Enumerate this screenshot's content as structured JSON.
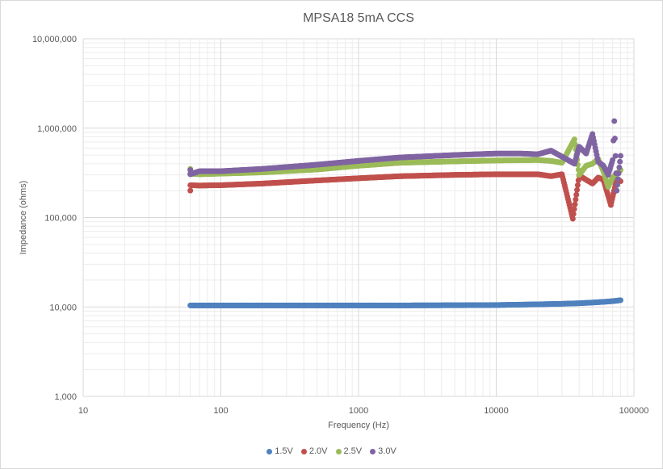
{
  "chart_data": {
    "type": "scatter",
    "title": "MPSA18 5mA CCS",
    "xlabel": "Frequency (Hz)",
    "ylabel": "Impedance (ohms)",
    "x_scale": "log",
    "y_scale": "log",
    "xlim": [
      10,
      100000
    ],
    "ylim": [
      1000,
      10000000
    ],
    "x_tick_labels": [
      "10",
      "100",
      "1000",
      "10000",
      "100000"
    ],
    "y_tick_labels": [
      "1,000",
      "10,000",
      "100,000",
      "1,000,000",
      "10,000,000"
    ],
    "grid": true,
    "legend_position": "bottom",
    "series": [
      {
        "name": "1.5V",
        "color": "#4f81bd",
        "points": [
          [
            60,
            10400
          ],
          [
            100,
            10400
          ],
          [
            200,
            10400
          ],
          [
            500,
            10400
          ],
          [
            1000,
            10400
          ],
          [
            2000,
            10400
          ],
          [
            5000,
            10450
          ],
          [
            10000,
            10500
          ],
          [
            20000,
            10700
          ],
          [
            30000,
            10850
          ],
          [
            40000,
            11000
          ],
          [
            50000,
            11200
          ],
          [
            60000,
            11400
          ],
          [
            70000,
            11600
          ],
          [
            80000,
            11900
          ]
        ]
      },
      {
        "name": "2.0V",
        "color": "#c0504d",
        "points": [
          [
            60,
            200000
          ],
          [
            60,
            230000
          ],
          [
            70,
            228000
          ],
          [
            100,
            230000
          ],
          [
            200,
            240000
          ],
          [
            500,
            260000
          ],
          [
            1000,
            275000
          ],
          [
            2000,
            290000
          ],
          [
            5000,
            300000
          ],
          [
            10000,
            305000
          ],
          [
            20000,
            305000
          ],
          [
            25000,
            290000
          ],
          [
            30000,
            305000
          ],
          [
            36000,
            97000
          ],
          [
            40000,
            295000
          ],
          [
            50000,
            240000
          ],
          [
            55000,
            280000
          ],
          [
            60000,
            265000
          ],
          [
            68000,
            138000
          ],
          [
            75000,
            270000
          ],
          [
            80000,
            255000
          ]
        ]
      },
      {
        "name": "2.5V",
        "color": "#9bbb59",
        "points": [
          [
            60,
            350000
          ],
          [
            60,
            310000
          ],
          [
            70,
            305000
          ],
          [
            100,
            310000
          ],
          [
            200,
            320000
          ],
          [
            500,
            345000
          ],
          [
            1000,
            380000
          ],
          [
            2000,
            410000
          ],
          [
            5000,
            425000
          ],
          [
            10000,
            435000
          ],
          [
            20000,
            440000
          ],
          [
            25000,
            430000
          ],
          [
            30000,
            410000
          ],
          [
            37000,
            750000
          ],
          [
            40000,
            300000
          ],
          [
            45000,
            380000
          ],
          [
            50000,
            400000
          ],
          [
            55000,
            450000
          ],
          [
            60000,
            330000
          ],
          [
            65000,
            220000
          ],
          [
            70000,
            280000
          ],
          [
            80000,
            340000
          ]
        ]
      },
      {
        "name": "3.0V",
        "color": "#8064a2",
        "points": [
          [
            60,
            340000
          ],
          [
            60,
            305000
          ],
          [
            70,
            330000
          ],
          [
            100,
            330000
          ],
          [
            200,
            350000
          ],
          [
            500,
            390000
          ],
          [
            1000,
            430000
          ],
          [
            2000,
            470000
          ],
          [
            5000,
            500000
          ],
          [
            10000,
            520000
          ],
          [
            15000,
            520000
          ],
          [
            20000,
            510000
          ],
          [
            25000,
            560000
          ],
          [
            30000,
            480000
          ],
          [
            37000,
            400000
          ],
          [
            40000,
            620000
          ],
          [
            45000,
            520000
          ],
          [
            50000,
            860000
          ],
          [
            55000,
            420000
          ],
          [
            60000,
            380000
          ],
          [
            65000,
            300000
          ],
          [
            70000,
            440000
          ],
          [
            72000,
            1200000
          ],
          [
            75000,
            200000
          ],
          [
            80000,
            490000
          ]
        ]
      }
    ]
  }
}
